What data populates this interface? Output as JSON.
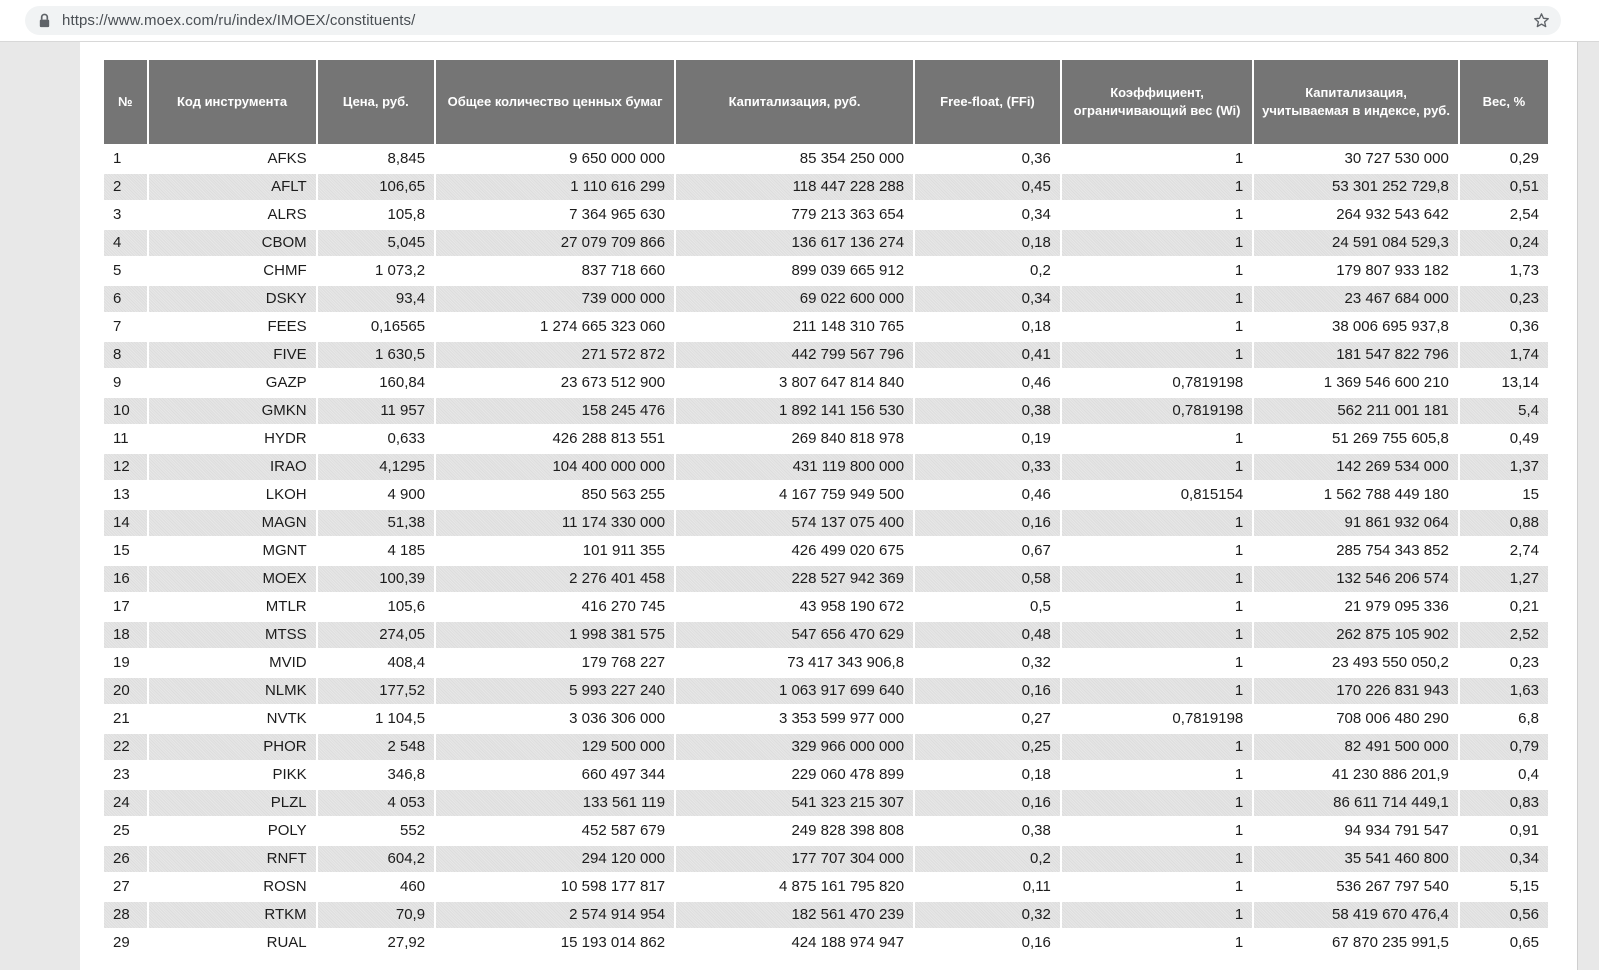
{
  "browser": {
    "url": "https://www.moex.com/ru/index/IMOEX/constituents/",
    "icons": {
      "lock": "lock-icon",
      "bookmark": "star-icon"
    }
  },
  "colors": {
    "header_bg": "#757575",
    "header_text": "#ffffff",
    "stripe_row": "#e3e3e3",
    "omnibox_bg": "#f1f3f4",
    "page_margin_bg": "#e8e8e8",
    "body_text": "#1c1c1c"
  },
  "table": {
    "headers": [
      "№",
      "Код инструмента",
      "Цена, руб.",
      "Общее количество ценных бумаг",
      "Капитализация, руб.",
      "Free-float, (FFi)",
      "Коэффициент, ограничивающий вес (Wi)",
      "Капитализация, учитываемая в индексе, руб.",
      "Вес, %"
    ],
    "rows": [
      [
        "1",
        "AFKS",
        "8,845",
        "9 650 000 000",
        "85 354 250 000",
        "0,36",
        "1",
        "30 727 530 000",
        "0,29"
      ],
      [
        "2",
        "AFLT",
        "106,65",
        "1 110 616 299",
        "118 447 228 288",
        "0,45",
        "1",
        "53 301 252 729,8",
        "0,51"
      ],
      [
        "3",
        "ALRS",
        "105,8",
        "7 364 965 630",
        "779 213 363 654",
        "0,34",
        "1",
        "264 932 543 642",
        "2,54"
      ],
      [
        "4",
        "CBOM",
        "5,045",
        "27 079 709 866",
        "136 617 136 274",
        "0,18",
        "1",
        "24 591 084 529,3",
        "0,24"
      ],
      [
        "5",
        "CHMF",
        "1 073,2",
        "837 718 660",
        "899 039 665 912",
        "0,2",
        "1",
        "179 807 933 182",
        "1,73"
      ],
      [
        "6",
        "DSKY",
        "93,4",
        "739 000 000",
        "69 022 600 000",
        "0,34",
        "1",
        "23 467 684 000",
        "0,23"
      ],
      [
        "7",
        "FEES",
        "0,16565",
        "1 274 665 323 060",
        "211 148 310 765",
        "0,18",
        "1",
        "38 006 695 937,8",
        "0,36"
      ],
      [
        "8",
        "FIVE",
        "1 630,5",
        "271 572 872",
        "442 799 567 796",
        "0,41",
        "1",
        "181 547 822 796",
        "1,74"
      ],
      [
        "9",
        "GAZP",
        "160,84",
        "23 673 512 900",
        "3 807 647 814 840",
        "0,46",
        "0,7819198",
        "1 369 546 600 210",
        "13,14"
      ],
      [
        "10",
        "GMKN",
        "11 957",
        "158 245 476",
        "1 892 141 156 530",
        "0,38",
        "0,7819198",
        "562 211 001 181",
        "5,4"
      ],
      [
        "11",
        "HYDR",
        "0,633",
        "426 288 813 551",
        "269 840 818 978",
        "0,19",
        "1",
        "51 269 755 605,8",
        "0,49"
      ],
      [
        "12",
        "IRAO",
        "4,1295",
        "104 400 000 000",
        "431 119 800 000",
        "0,33",
        "1",
        "142 269 534 000",
        "1,37"
      ],
      [
        "13",
        "LKOH",
        "4 900",
        "850 563 255",
        "4 167 759 949 500",
        "0,46",
        "0,815154",
        "1 562 788 449 180",
        "15"
      ],
      [
        "14",
        "MAGN",
        "51,38",
        "11 174 330 000",
        "574 137 075 400",
        "0,16",
        "1",
        "91 861 932 064",
        "0,88"
      ],
      [
        "15",
        "MGNT",
        "4 185",
        "101 911 355",
        "426 499 020 675",
        "0,67",
        "1",
        "285 754 343 852",
        "2,74"
      ],
      [
        "16",
        "MOEX",
        "100,39",
        "2 276 401 458",
        "228 527 942 369",
        "0,58",
        "1",
        "132 546 206 574",
        "1,27"
      ],
      [
        "17",
        "MTLR",
        "105,6",
        "416 270 745",
        "43 958 190 672",
        "0,5",
        "1",
        "21 979 095 336",
        "0,21"
      ],
      [
        "18",
        "MTSS",
        "274,05",
        "1 998 381 575",
        "547 656 470 629",
        "0,48",
        "1",
        "262 875 105 902",
        "2,52"
      ],
      [
        "19",
        "MVID",
        "408,4",
        "179 768 227",
        "73 417 343 906,8",
        "0,32",
        "1",
        "23 493 550 050,2",
        "0,23"
      ],
      [
        "20",
        "NLMK",
        "177,52",
        "5 993 227 240",
        "1 063 917 699 640",
        "0,16",
        "1",
        "170 226 831 943",
        "1,63"
      ],
      [
        "21",
        "NVTK",
        "1 104,5",
        "3 036 306 000",
        "3 353 599 977 000",
        "0,27",
        "0,7819198",
        "708 006 480 290",
        "6,8"
      ],
      [
        "22",
        "PHOR",
        "2 548",
        "129 500 000",
        "329 966 000 000",
        "0,25",
        "1",
        "82 491 500 000",
        "0,79"
      ],
      [
        "23",
        "PIKK",
        "346,8",
        "660 497 344",
        "229 060 478 899",
        "0,18",
        "1",
        "41 230 886 201,9",
        "0,4"
      ],
      [
        "24",
        "PLZL",
        "4 053",
        "133 561 119",
        "541 323 215 307",
        "0,16",
        "1",
        "86 611 714 449,1",
        "0,83"
      ],
      [
        "25",
        "POLY",
        "552",
        "452 587 679",
        "249 828 398 808",
        "0,38",
        "1",
        "94 934 791 547",
        "0,91"
      ],
      [
        "26",
        "RNFT",
        "604,2",
        "294 120 000",
        "177 707 304 000",
        "0,2",
        "1",
        "35 541 460 800",
        "0,34"
      ],
      [
        "27",
        "ROSN",
        "460",
        "10 598 177 817",
        "4 875 161 795 820",
        "0,11",
        "1",
        "536 267 797 540",
        "5,15"
      ],
      [
        "28",
        "RTKM",
        "70,9",
        "2 574 914 954",
        "182 561 470 239",
        "0,32",
        "1",
        "58 419 670 476,4",
        "0,56"
      ],
      [
        "29",
        "RUAL",
        "27,92",
        "15 193 014 862",
        "424 188 974 947",
        "0,16",
        "1",
        "67 870 235 991,5",
        "0,65"
      ]
    ]
  }
}
